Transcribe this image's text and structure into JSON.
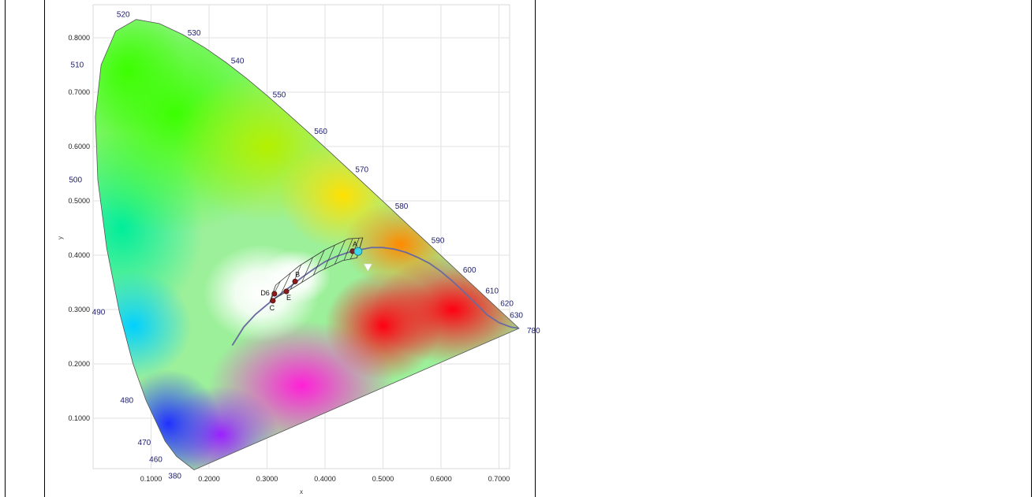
{
  "chart_data": {
    "type": "scatter",
    "xlabel": "x",
    "ylabel": "y",
    "xlim": [
      0.0,
      0.74
    ],
    "ylim": [
      0.0,
      0.85
    ],
    "x_ticks": [
      "0.1000",
      "0.2000",
      "0.3000",
      "0.4000",
      "0.5000",
      "0.6000",
      "0.7000"
    ],
    "y_ticks": [
      "0.1000",
      "0.2000",
      "0.3000",
      "0.4000",
      "0.5000",
      "0.6000",
      "0.7000",
      "0.8000"
    ],
    "grid": true,
    "spectral_locus": [
      {
        "nm": "380",
        "x": 0.1741,
        "y": 0.005
      },
      {
        "nm": "460",
        "x": 0.144,
        "y": 0.0297
      },
      {
        "nm": "470",
        "x": 0.1241,
        "y": 0.0578
      },
      {
        "nm": "480",
        "x": 0.0913,
        "y": 0.1327
      },
      {
        "nm": "490",
        "x": 0.0454,
        "y": 0.295
      },
      {
        "nm": "500",
        "x": 0.0082,
        "y": 0.5384
      },
      {
        "nm": "510",
        "x": 0.0139,
        "y": 0.7502
      },
      {
        "nm": "520",
        "x": 0.0743,
        "y": 0.8338
      },
      {
        "nm": "530",
        "x": 0.1547,
        "y": 0.8059
      },
      {
        "nm": "540",
        "x": 0.2296,
        "y": 0.7543
      },
      {
        "nm": "550",
        "x": 0.3016,
        "y": 0.6923
      },
      {
        "nm": "560",
        "x": 0.3731,
        "y": 0.6245
      },
      {
        "nm": "570",
        "x": 0.4441,
        "y": 0.5547
      },
      {
        "nm": "580",
        "x": 0.5125,
        "y": 0.4866
      },
      {
        "nm": "590",
        "x": 0.5752,
        "y": 0.4242
      },
      {
        "nm": "600",
        "x": 0.627,
        "y": 0.3725
      },
      {
        "nm": "610",
        "x": 0.6658,
        "y": 0.334
      },
      {
        "nm": "620",
        "x": 0.6915,
        "y": 0.3083
      },
      {
        "nm": "630",
        "x": 0.7079,
        "y": 0.292
      },
      {
        "nm": "780",
        "x": 0.7347,
        "y": 0.2653
      }
    ],
    "locus_fill": [
      [
        0.1741,
        0.005
      ],
      [
        0.144,
        0.0297
      ],
      [
        0.1241,
        0.0578
      ],
      [
        0.0913,
        0.1327
      ],
      [
        0.0687,
        0.2007
      ],
      [
        0.0454,
        0.295
      ],
      [
        0.0235,
        0.4127
      ],
      [
        0.0082,
        0.5384
      ],
      [
        0.0039,
        0.6548
      ],
      [
        0.0139,
        0.7502
      ],
      [
        0.0389,
        0.812
      ],
      [
        0.0743,
        0.8338
      ],
      [
        0.1142,
        0.8262
      ],
      [
        0.1547,
        0.8059
      ],
      [
        0.1929,
        0.7816
      ],
      [
        0.2296,
        0.7543
      ],
      [
        0.2658,
        0.7243
      ],
      [
        0.3016,
        0.6923
      ],
      [
        0.3373,
        0.6589
      ],
      [
        0.3731,
        0.6245
      ],
      [
        0.4087,
        0.5896
      ],
      [
        0.4441,
        0.5547
      ],
      [
        0.4788,
        0.5202
      ],
      [
        0.5125,
        0.4866
      ],
      [
        0.5448,
        0.4544
      ],
      [
        0.5752,
        0.4242
      ],
      [
        0.6029,
        0.3965
      ],
      [
        0.627,
        0.3725
      ],
      [
        0.6482,
        0.3514
      ],
      [
        0.6658,
        0.334
      ],
      [
        0.6801,
        0.3197
      ],
      [
        0.6915,
        0.3083
      ],
      [
        0.7006,
        0.2993
      ],
      [
        0.7079,
        0.292
      ],
      [
        0.7347,
        0.2653
      ]
    ],
    "planckian_locus": [
      [
        0.24,
        0.234
      ],
      [
        0.26,
        0.268
      ],
      [
        0.28,
        0.291
      ],
      [
        0.3,
        0.309
      ],
      [
        0.32,
        0.326
      ],
      [
        0.34,
        0.342
      ],
      [
        0.36,
        0.359
      ],
      [
        0.38,
        0.374
      ],
      [
        0.4,
        0.388
      ],
      [
        0.42,
        0.398
      ],
      [
        0.44,
        0.405
      ],
      [
        0.46,
        0.41
      ],
      [
        0.48,
        0.414
      ],
      [
        0.5,
        0.414
      ],
      [
        0.52,
        0.411
      ],
      [
        0.54,
        0.405
      ],
      [
        0.56,
        0.396
      ],
      [
        0.58,
        0.385
      ],
      [
        0.6,
        0.37
      ],
      [
        0.62,
        0.352
      ],
      [
        0.64,
        0.332
      ],
      [
        0.66,
        0.311
      ],
      [
        0.68,
        0.29
      ],
      [
        0.7,
        0.276
      ],
      [
        0.72,
        0.268
      ],
      [
        0.7347,
        0.2653
      ]
    ],
    "tolerance_band": {
      "upper": [
        [
          0.315,
          0.345
        ],
        [
          0.355,
          0.38
        ],
        [
          0.4,
          0.41
        ],
        [
          0.44,
          0.43
        ],
        [
          0.465,
          0.432
        ]
      ],
      "lower": [
        [
          0.305,
          0.315
        ],
        [
          0.345,
          0.34
        ],
        [
          0.39,
          0.37
        ],
        [
          0.43,
          0.39
        ],
        [
          0.455,
          0.395
        ]
      ],
      "rungs": 9
    },
    "reference_points": [
      {
        "name": "D6",
        "x": 0.3127,
        "y": 0.329,
        "color": "#8b1a1a",
        "label_pos": "left"
      },
      {
        "name": "C",
        "x": 0.3101,
        "y": 0.3162,
        "color": "#8b1a1a",
        "label_pos": "below"
      },
      {
        "name": "E",
        "x": 0.3333,
        "y": 0.3333,
        "color": "#8b1a1a",
        "label_pos": "below-right"
      },
      {
        "name": "B",
        "x": 0.3484,
        "y": 0.3516,
        "color": "#8b1a1a",
        "label_pos": "above"
      },
      {
        "name": "A",
        "x": 0.4476,
        "y": 0.4074,
        "color": "#7a2020",
        "label_pos": "above"
      }
    ],
    "marker_point": {
      "x": 0.457,
      "y": 0.407,
      "color": "#3fd4e8"
    },
    "marker_triangle": {
      "x": 0.474,
      "y": 0.378,
      "color": "#ffffff"
    }
  }
}
